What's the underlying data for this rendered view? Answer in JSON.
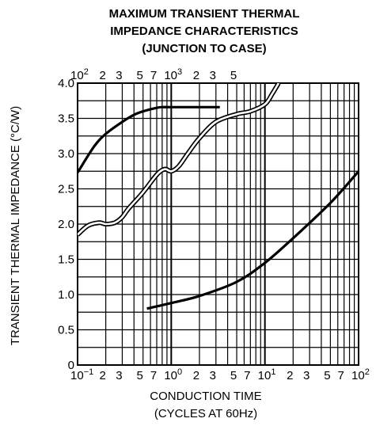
{
  "chart_data": {
    "type": "line",
    "title": [
      "MAXIMUM TRANSIENT THERMAL",
      "IMPEDANCE CHARACTERISTICS",
      "(JUNCTION TO CASE)"
    ],
    "xlabel": [
      "CONDUCTION TIME",
      "(CYCLES AT 60Hz)"
    ],
    "ylabel": "TRANSIENT THERMAL IMPEDANCE   (°C/W)",
    "x_scale": "log",
    "xlim": [
      0.1,
      100
    ],
    "ylim": [
      0,
      4.0
    ],
    "grid": true,
    "y_ticks": [
      "0",
      "0.5",
      "1.0",
      "1.5",
      "2.0",
      "2.5",
      "3.0",
      "3.5",
      "4.0"
    ],
    "bottom_tick_labels": [
      {
        "x": 0.1,
        "base": "10",
        "exp": "−1"
      },
      {
        "x": 0.2,
        "text": "2"
      },
      {
        "x": 0.3,
        "text": "3"
      },
      {
        "x": 0.5,
        "text": "5"
      },
      {
        "x": 0.7,
        "text": "7"
      },
      {
        "x": 1,
        "base": "10",
        "exp": "0"
      },
      {
        "x": 2,
        "text": "2"
      },
      {
        "x": 3,
        "text": "3"
      },
      {
        "x": 5,
        "text": "5"
      },
      {
        "x": 7,
        "text": "7"
      },
      {
        "x": 10,
        "base": "10",
        "exp": "1"
      },
      {
        "x": 20,
        "text": "2"
      },
      {
        "x": 30,
        "text": "3"
      },
      {
        "x": 50,
        "text": "5"
      },
      {
        "x": 70,
        "text": "7"
      },
      {
        "x": 100,
        "base": "10",
        "exp": "2"
      }
    ],
    "top_tick_labels": [
      {
        "x": 0.1,
        "base": "10",
        "exp": "2"
      },
      {
        "x": 0.2,
        "text": "2"
      },
      {
        "x": 0.3,
        "text": "3"
      },
      {
        "x": 0.5,
        "text": "5"
      },
      {
        "x": 0.7,
        "text": "7"
      },
      {
        "x": 1,
        "base": "10",
        "exp": "3"
      },
      {
        "x": 2,
        "text": "2"
      },
      {
        "x": 3,
        "text": "3"
      },
      {
        "x": 5,
        "text": "5"
      }
    ],
    "series": [
      {
        "style": "solid",
        "x": [
          0.1,
          0.15,
          0.2,
          0.3,
          0.4,
          0.5,
          0.7,
          0.8,
          1.0,
          2.0,
          3.3
        ],
        "y": [
          2.73,
          3.1,
          3.28,
          3.45,
          3.55,
          3.6,
          3.65,
          3.66,
          3.66,
          3.66,
          3.66
        ]
      },
      {
        "style": "outlined",
        "x": [
          0.1,
          0.13,
          0.17,
          0.2,
          0.25,
          0.3,
          0.35,
          0.5,
          0.7,
          0.85,
          1.0,
          1.2,
          1.5,
          2.0,
          3.0,
          5.0,
          7.0,
          10.0,
          12.0,
          14.0
        ],
        "y": [
          1.85,
          1.98,
          2.02,
          2.0,
          2.02,
          2.1,
          2.22,
          2.45,
          2.7,
          2.78,
          2.75,
          2.82,
          3.0,
          3.22,
          3.45,
          3.56,
          3.6,
          3.7,
          3.85,
          4.0
        ]
      },
      {
        "style": "solid",
        "x": [
          0.55,
          1.0,
          2.0,
          5.0,
          10.0,
          20.0,
          50.0,
          100.0
        ],
        "y": [
          0.8,
          0.88,
          0.98,
          1.18,
          1.45,
          1.8,
          2.3,
          2.75
        ]
      }
    ]
  }
}
